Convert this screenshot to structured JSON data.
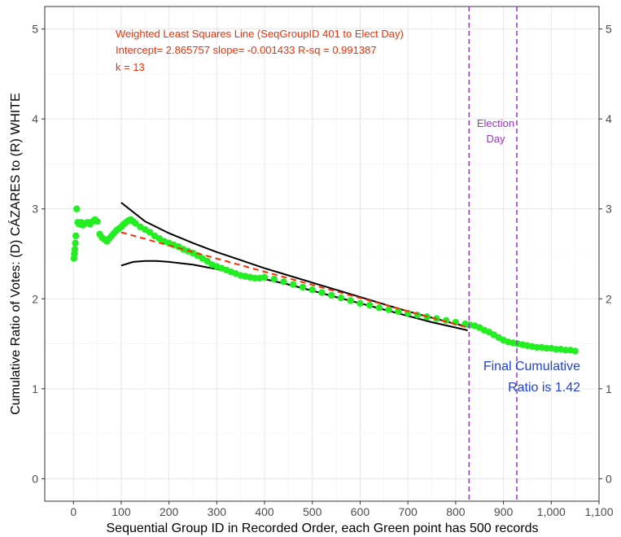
{
  "chart_data": {
    "type": "scatter",
    "title": "",
    "xlabel": "Sequential Group ID in Recorded Order, each Green point has 500 records",
    "ylabel": "Cumulative Ratio of Votes:   (D) CÁZARES  to  (R) WHITE",
    "xlim": [
      -60,
      1100
    ],
    "ylim": [
      -0.25,
      5.25
    ],
    "x_ticks": [
      0,
      100,
      200,
      300,
      400,
      500,
      600,
      700,
      800,
      900,
      1000,
      1100
    ],
    "x_tick_labels": [
      "0",
      "100",
      "200",
      "300",
      "400",
      "500",
      "600",
      "700",
      "800",
      "900",
      "1,000",
      "1,100"
    ],
    "y_ticks": [
      0,
      1,
      2,
      3,
      4,
      5
    ],
    "y_tick_labels": [
      "0",
      "1",
      "2",
      "3",
      "4",
      "5"
    ],
    "grid": true,
    "secondary_y_axis": true,
    "series": [
      {
        "kind": "points",
        "color": "#22ee22",
        "x": [
          1,
          2,
          3,
          4,
          5,
          7,
          9,
          12,
          16,
          20,
          25,
          30,
          35,
          40,
          45,
          50,
          55,
          60,
          65,
          70,
          75,
          80,
          85,
          90,
          95,
          100,
          105,
          110,
          115,
          120,
          125,
          130,
          140,
          150,
          160,
          170,
          180,
          190,
          200,
          210,
          220,
          230,
          240,
          250,
          260,
          270,
          280,
          290,
          300,
          310,
          320,
          330,
          340,
          350,
          360,
          370,
          380,
          390,
          400,
          420,
          440,
          460,
          480,
          500,
          520,
          540,
          560,
          580,
          600,
          620,
          640,
          660,
          680,
          700,
          720,
          740,
          760,
          780,
          800,
          820,
          830,
          840,
          850,
          860,
          870,
          880,
          890,
          900,
          910,
          920,
          930,
          940,
          950,
          960,
          970,
          980,
          990,
          1000,
          1010,
          1020,
          1030,
          1040,
          1050
        ],
        "y": [
          2.45,
          2.5,
          2.55,
          2.62,
          2.7,
          3.0,
          2.85,
          2.83,
          2.85,
          2.82,
          2.84,
          2.85,
          2.83,
          2.86,
          2.88,
          2.86,
          2.72,
          2.68,
          2.66,
          2.64,
          2.67,
          2.7,
          2.73,
          2.76,
          2.78,
          2.8,
          2.83,
          2.85,
          2.87,
          2.88,
          2.86,
          2.84,
          2.8,
          2.77,
          2.74,
          2.7,
          2.67,
          2.64,
          2.62,
          2.6,
          2.58,
          2.55,
          2.53,
          2.51,
          2.48,
          2.45,
          2.42,
          2.38,
          2.36,
          2.34,
          2.32,
          2.3,
          2.28,
          2.26,
          2.25,
          2.24,
          2.23,
          2.23,
          2.24,
          2.22,
          2.19,
          2.16,
          2.13,
          2.1,
          2.07,
          2.04,
          2.01,
          1.98,
          1.95,
          1.93,
          1.9,
          1.88,
          1.86,
          1.84,
          1.82,
          1.8,
          1.78,
          1.76,
          1.74,
          1.72,
          1.71,
          1.7,
          1.68,
          1.65,
          1.63,
          1.6,
          1.57,
          1.54,
          1.52,
          1.51,
          1.5,
          1.49,
          1.48,
          1.47,
          1.46,
          1.46,
          1.45,
          1.45,
          1.44,
          1.44,
          1.43,
          1.43,
          1.42
        ]
      },
      {
        "kind": "fit-line",
        "color": "#ff2a00",
        "dashed": true,
        "x": [
          100,
          825
        ],
        "y": [
          2.74,
          1.68
        ]
      },
      {
        "kind": "upper-band",
        "color": "#000000",
        "x": [
          100,
          150,
          200,
          250,
          300,
          350,
          400,
          450,
          500,
          550,
          600,
          650,
          700,
          750,
          800,
          825
        ],
        "y": [
          3.07,
          2.86,
          2.73,
          2.62,
          2.52,
          2.43,
          2.34,
          2.26,
          2.18,
          2.1,
          2.02,
          1.94,
          1.86,
          1.79,
          1.72,
          1.69
        ]
      },
      {
        "kind": "lower-band",
        "color": "#000000",
        "x": [
          100,
          125,
          150,
          175,
          200,
          250,
          300,
          350,
          400,
          450,
          500,
          550,
          600,
          650,
          700,
          750,
          800,
          825
        ],
        "y": [
          2.37,
          2.41,
          2.42,
          2.42,
          2.41,
          2.38,
          2.33,
          2.28,
          2.22,
          2.16,
          2.09,
          2.02,
          1.95,
          1.88,
          1.81,
          1.74,
          1.68,
          1.65
        ]
      }
    ],
    "vlines": [
      {
        "x": 828,
        "color": "#9a32cd",
        "dashed": true
      },
      {
        "x": 928,
        "color": "#9a32cd",
        "dashed": true
      }
    ],
    "annotations": {
      "wls_line1": "Weighted Least Squares Line (SeqGroupID 401 to Elect Day)",
      "wls_line2": "Intercept= 2.865757  slope= -0.001433  R-sq = 0.991387",
      "wls_line3": "k = 13",
      "election_line1": "Election",
      "election_line2": "Day",
      "final_line1": "Final Cumulative",
      "final_line2": "Ratio is 1.42"
    },
    "colors": {
      "points": "#22ee22",
      "fit": "#ff2a00",
      "election": "#9a32cd",
      "final": "#1f3fe0"
    }
  }
}
